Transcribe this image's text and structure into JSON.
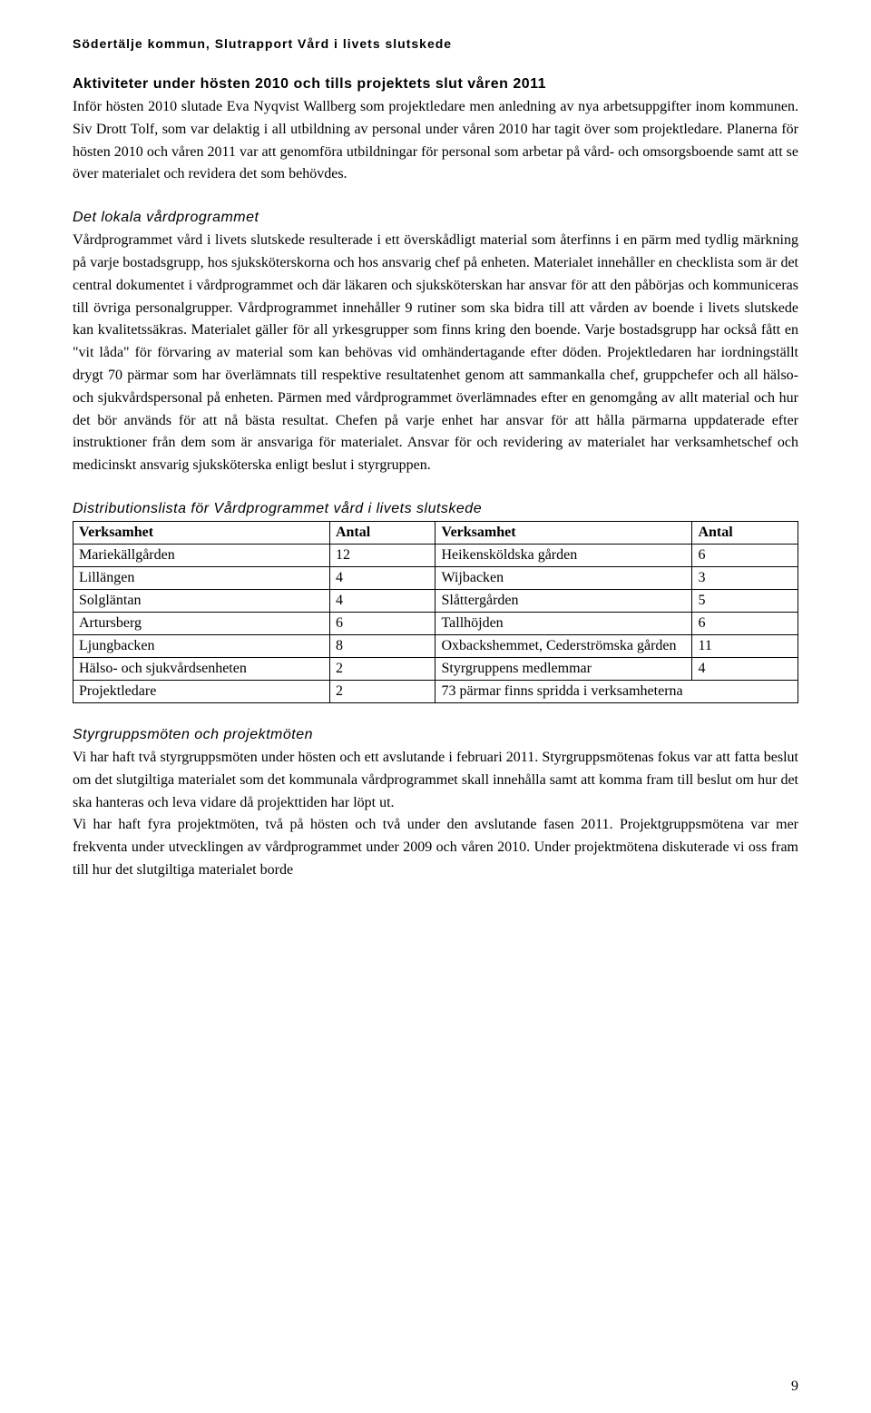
{
  "header": "Södertälje kommun, Slutrapport Vård i livets slutskede",
  "section1": {
    "title": "Aktiviteter under hösten 2010 och tills projektets slut våren 2011",
    "para": "Inför hösten 2010 slutade Eva Nyqvist Wallberg som projektledare men anledning av nya arbetsuppgifter inom kommunen. Siv Drott Tolf, som var delaktig i all utbildning av personal under våren 2010 har tagit över som projektledare. Planerna för hösten 2010 och våren 2011 var att genomföra utbildningar för personal som arbetar på vård- och omsorgsboende samt att se över materialet och revidera det som behövdes."
  },
  "section2": {
    "title": "Det lokala vårdprogrammet",
    "para": "Vårdprogrammet vård i livets slutskede resulterade i ett överskådligt material som återfinns i en pärm med tydlig märkning på varje bostadsgrupp, hos sjuksköterskorna och hos ansvarig chef på enheten. Materialet innehåller en checklista som är det central dokumentet i vårdprogrammet och där läkaren och sjuksköterskan har ansvar för att den påbörjas och kommuniceras till övriga personalgrupper. Vårdprogrammet innehåller 9 rutiner som ska bidra till att vården av boende i livets slutskede kan kvalitetssäkras. Materialet gäller för all yrkesgrupper som finns kring den boende. Varje bostadsgrupp har också fått en \"vit låda\" för förvaring av material som kan behövas vid omhändertagande efter döden. Projektledaren har iordningställt drygt 70 pärmar som har överlämnats till respektive resultatenhet genom att sammankalla chef, gruppchefer och all hälso- och sjukvårdspersonal på enheten. Pärmen med vårdprogrammet överlämnades efter en genomgång av allt material och hur det bör används för att nå bästa resultat. Chefen på varje enhet har ansvar för att hålla pärmarna uppdaterade efter instruktioner från dem som är ansvariga för materialet. Ansvar för och revidering av materialet har verksamhetschef och medicinskt ansvarig sjuksköterska enligt beslut i styrgruppen."
  },
  "table": {
    "title": "Distributionslista för Vårdprogrammet vård i livets slutskede",
    "headers": [
      "Verksamhet",
      "Antal",
      "Verksamhet",
      "Antal"
    ],
    "rows": [
      [
        "Mariekällgården",
        "12",
        "Heikensköldska gården",
        "6"
      ],
      [
        "Lillängen",
        "4",
        "Wijbacken",
        "3"
      ],
      [
        "Solgläntan",
        "4",
        "Slåttergården",
        "5"
      ],
      [
        "Artursberg",
        "6",
        "Tallhöjden",
        "6"
      ],
      [
        "Ljungbacken",
        "8",
        "Oxbackshemmet, Cederströmska gården",
        "11"
      ],
      [
        "Hälso- och sjukvårdsenheten",
        "2",
        "Styrgruppens medlemmar",
        "4"
      ],
      [
        "Projektledare",
        "2",
        "73 pärmar finns spridda i verksamheterna",
        ""
      ]
    ],
    "boldLastRight": true
  },
  "section3": {
    "title": "Styrgruppsmöten och projektmöten",
    "para": "Vi har haft två styrgruppsmöten under hösten och ett avslutande i februari 2011. Styrgruppsmötenas fokus var att fatta beslut om det slutgiltiga materialet som det kommunala vårdprogrammet skall innehålla samt att komma fram till beslut om hur det ska hanteras och leva vidare då projekttiden har löpt ut.\nVi har haft fyra projektmöten, två på hösten och två under den avslutande fasen 2011. Projektgruppsmötena var mer frekventa under utvecklingen av vårdprogrammet under 2009 och våren 2010. Under projektmötena diskuterade vi oss fram till hur det slutgiltiga materialet borde"
  },
  "pageNumber": "9"
}
